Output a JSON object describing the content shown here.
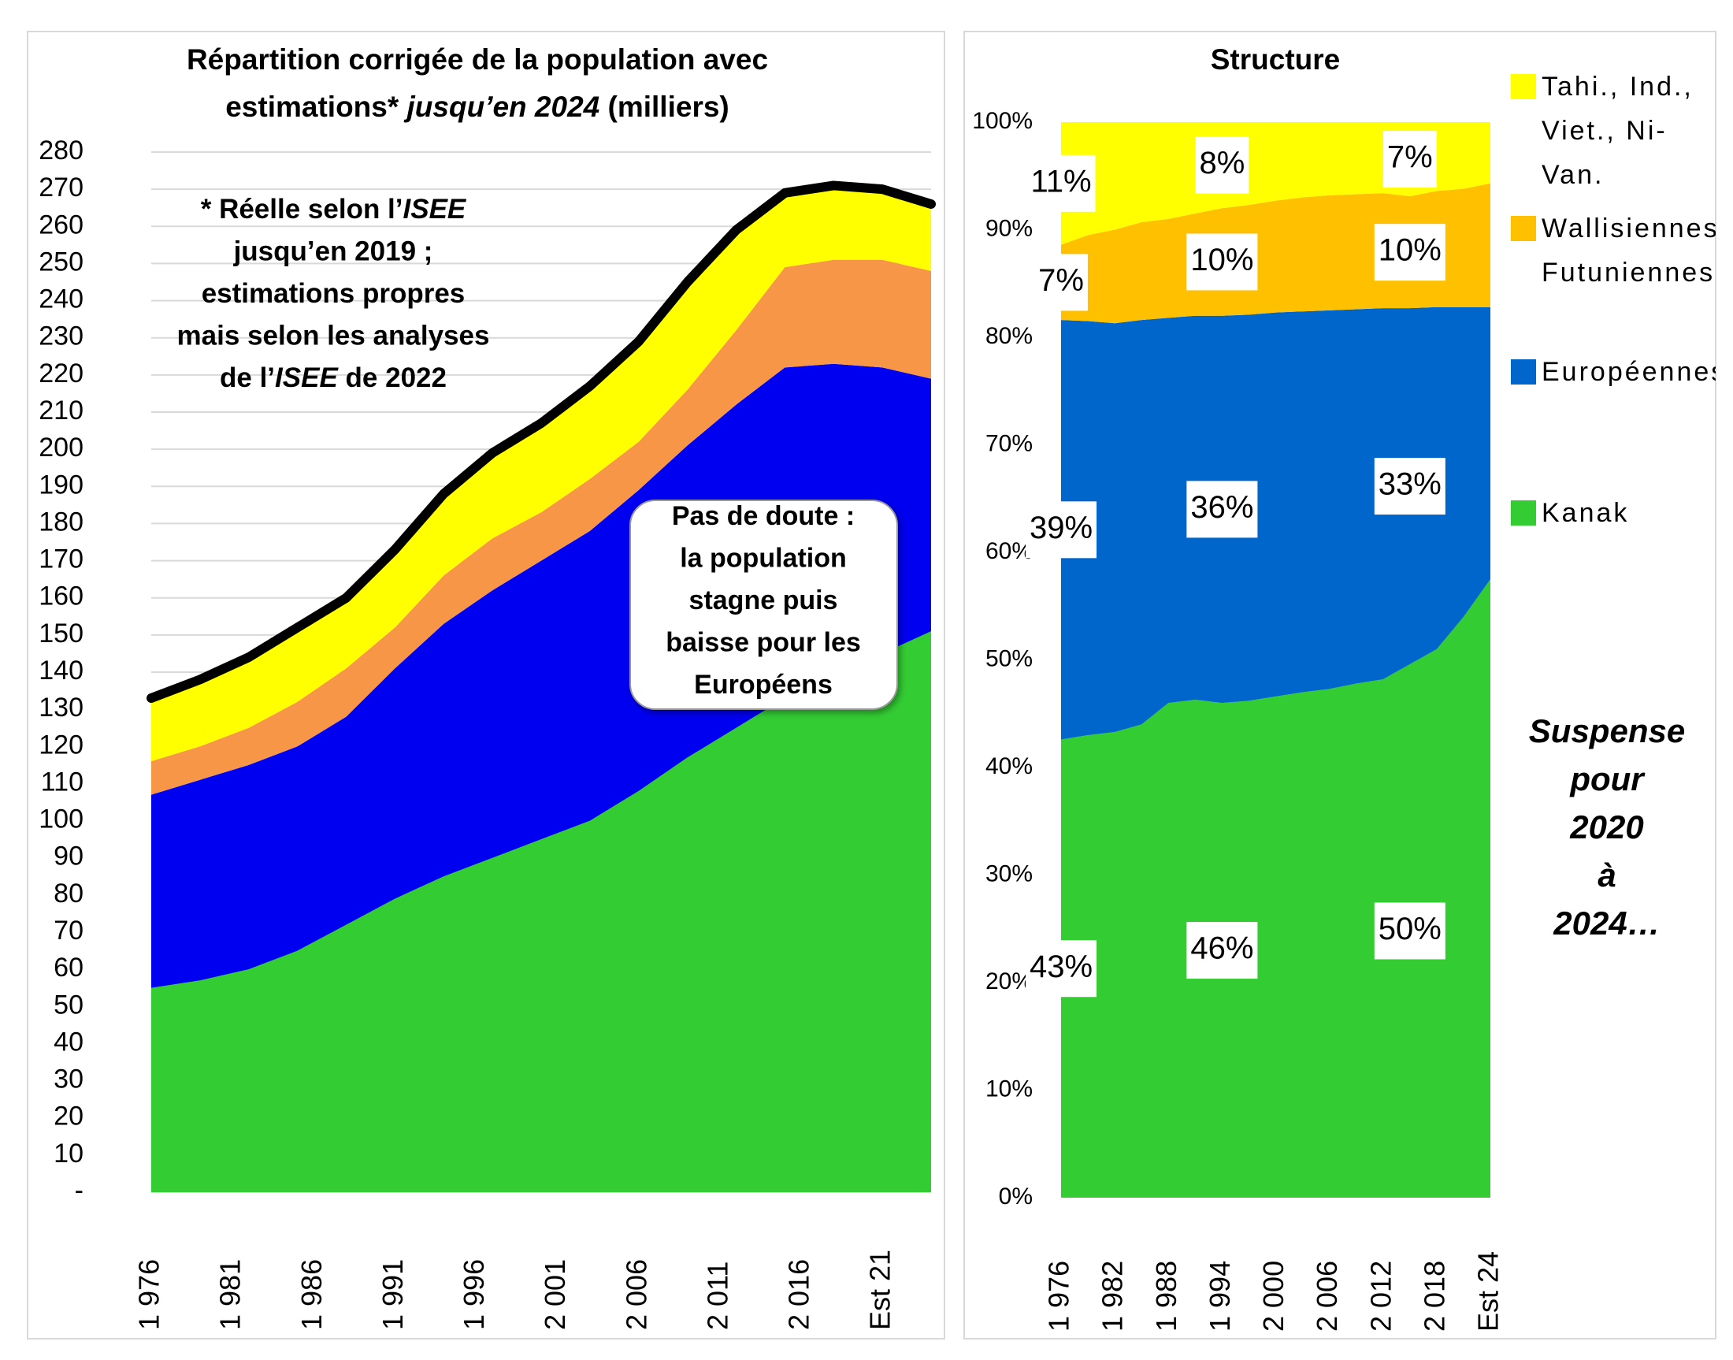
{
  "chart_data": [
    {
      "type": "stacked_area",
      "title": [
        [
          {
            "text": "Répartition corrigée de la population avec"
          }
        ],
        [
          {
            "text": "estimations* "
          },
          {
            "text": "jusqu’en 2024",
            "italic": true
          },
          {
            "text": " (milliers)"
          }
        ]
      ],
      "x": [
        1976,
        1979,
        1982,
        1985,
        1988,
        1991,
        1994,
        1997,
        2000,
        2003,
        2006,
        2009,
        2012,
        2015,
        2018,
        2021,
        2024
      ],
      "xlim": [
        1976,
        2024
      ],
      "xticks": [
        {
          "value": 1976,
          "label": "1 976"
        },
        {
          "value": 1981,
          "label": "1 981"
        },
        {
          "value": 1986,
          "label": "1 986"
        },
        {
          "value": 1991,
          "label": "1 991"
        },
        {
          "value": 1996,
          "label": "1 996"
        },
        {
          "value": 2001,
          "label": "2 001"
        },
        {
          "value": 2006,
          "label": "2 006"
        },
        {
          "value": 2011,
          "label": "2 011"
        },
        {
          "value": 2016,
          "label": "2 016"
        },
        {
          "value": 2021,
          "label": "Est 21"
        }
      ],
      "ylim": [
        0,
        280
      ],
      "yticks": [
        {
          "value": 0,
          "label": "-"
        },
        10,
        20,
        30,
        40,
        50,
        60,
        70,
        80,
        90,
        100,
        110,
        120,
        130,
        140,
        150,
        160,
        170,
        180,
        190,
        200,
        210,
        220,
        230,
        240,
        250,
        260,
        270,
        280
      ],
      "grid": true,
      "total_line": true,
      "series": [
        {
          "color": "#33cc33",
          "values": [
            55,
            57,
            60,
            65,
            72,
            79,
            85,
            90,
            95,
            100,
            108,
            117,
            125,
            133,
            138,
            145,
            151
          ]
        },
        {
          "color": "#0000f0",
          "values": [
            52,
            54,
            55,
            55,
            56,
            62,
            68,
            72,
            75,
            78,
            81,
            84,
            87,
            89,
            85,
            77,
            68
          ]
        },
        {
          "color": "#f79646",
          "values": [
            9,
            9,
            10,
            12,
            13,
            11,
            13,
            14,
            13,
            14,
            13,
            15,
            20,
            27,
            28,
            29,
            29
          ]
        },
        {
          "color": "#ffff00",
          "values": [
            17,
            18,
            19,
            20,
            19,
            21,
            22,
            23,
            24,
            25,
            27,
            29,
            27,
            20,
            20,
            19,
            18
          ]
        }
      ],
      "notes": [
        [
          {
            "text": "* Réelle selon l’"
          },
          {
            "text": "ISEE",
            "italic": true
          }
        ],
        [
          {
            "text": "jusqu’en 2019 ;"
          }
        ],
        [
          {
            "text": "estimations propres"
          }
        ],
        [
          {
            "text": "mais selon les analyses"
          }
        ],
        [
          {
            "text": "de l’"
          },
          {
            "text": "ISEE",
            "italic": true
          },
          {
            "text": " de 2022"
          }
        ]
      ],
      "callout": [
        "Pas de doute :",
        "la population",
        "stagne puis",
        "baisse pour les",
        "Européens"
      ]
    },
    {
      "type": "stacked_area",
      "title": [
        [
          {
            "text": "Structure"
          }
        ]
      ],
      "x": [
        1976,
        1979,
        1982,
        1985,
        1988,
        1991,
        1994,
        1997,
        2000,
        2003,
        2006,
        2009,
        2012,
        2015,
        2018,
        2021,
        2024
      ],
      "xlim": [
        1976,
        2024
      ],
      "xticks": [
        {
          "value": 1976,
          "label": "1 976"
        },
        {
          "value": 1982,
          "label": "1 982"
        },
        {
          "value": 1988,
          "label": "1 988"
        },
        {
          "value": 1994,
          "label": "1 994"
        },
        {
          "value": 2000,
          "label": "2 000"
        },
        {
          "value": 2006,
          "label": "2 006"
        },
        {
          "value": 2012,
          "label": "2 012"
        },
        {
          "value": 2018,
          "label": "2 018"
        },
        {
          "value": 2024,
          "label": "Est 24"
        }
      ],
      "ylim": [
        0,
        100
      ],
      "yticks": [
        {
          "value": 0,
          "label": "0%"
        },
        {
          "value": 10,
          "label": "10%"
        },
        {
          "value": 20,
          "label": "20%"
        },
        {
          "value": 30,
          "label": "30%"
        },
        {
          "value": 40,
          "label": "40%"
        },
        {
          "value": 50,
          "label": "50%"
        },
        {
          "value": 60,
          "label": "60%"
        },
        {
          "value": 70,
          "label": "70%"
        },
        {
          "value": 80,
          "label": "80%"
        },
        {
          "value": 90,
          "label": "90%"
        },
        {
          "value": 100,
          "label": "100%"
        }
      ],
      "grid": false,
      "series": [
        {
          "name": "Kanak",
          "color": "#33cc33",
          "values": [
            42.6,
            43,
            43.3,
            44,
            46,
            46.3,
            46,
            46.2,
            46.6,
            47,
            47.3,
            47.8,
            48.2,
            49.6,
            51,
            54,
            57.5
          ],
          "value_labels": [
            "43%",
            null,
            null,
            null,
            null,
            null,
            "46%",
            null,
            null,
            null,
            null,
            null,
            null,
            "50%",
            null,
            null,
            null
          ]
        },
        {
          "name": "Européennes",
          "color": "#0066cc",
          "values": [
            39,
            38.5,
            38,
            37.6,
            35.8,
            35.7,
            36,
            35.9,
            35.7,
            35.4,
            35.2,
            34.8,
            34.5,
            33.1,
            31.8,
            28.8,
            25.3
          ],
          "value_labels": [
            "39%",
            null,
            null,
            null,
            null,
            null,
            "36%",
            null,
            null,
            null,
            null,
            null,
            null,
            "33%",
            null,
            null,
            null
          ]
        },
        {
          "name": "Wallisiennes, Futuniennes",
          "color": "#ffc000",
          "values": [
            7,
            8,
            8.7,
            9.1,
            9.2,
            9.5,
            10,
            10.2,
            10.4,
            10.6,
            10.7,
            10.7,
            10.7,
            10.4,
            10.8,
            11,
            11.5
          ],
          "value_labels": [
            "7%",
            null,
            null,
            null,
            null,
            null,
            "10%",
            null,
            null,
            null,
            null,
            null,
            null,
            "10%",
            null,
            null,
            null
          ]
        },
        {
          "name": "Tahi., Ind., Viet., Ni-Van.",
          "color": "#ffff00",
          "values": [
            11.4,
            10.5,
            10,
            9.3,
            9,
            8.5,
            8,
            7.7,
            7.3,
            7,
            6.8,
            6.7,
            6.6,
            6.9,
            6.4,
            6.2,
            5.7
          ],
          "value_labels": [
            "11%",
            null,
            null,
            null,
            null,
            null,
            "8%",
            null,
            null,
            null,
            null,
            null,
            null,
            "7%",
            null,
            null,
            null
          ]
        }
      ],
      "side_note": [
        "Suspense",
        "pour",
        "2020",
        "à",
        "2024…"
      ]
    }
  ]
}
